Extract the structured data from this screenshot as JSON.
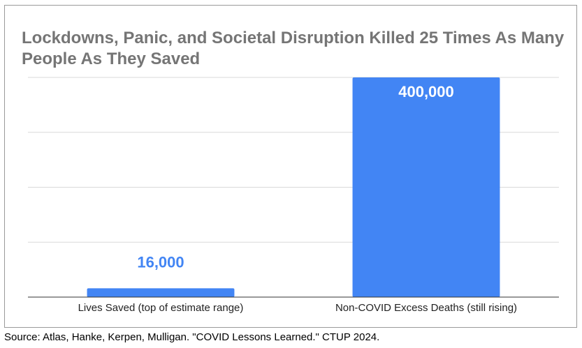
{
  "chart_data": {
    "type": "bar",
    "title": "Lockdowns, Panic, and Societal Disruption Killed 25 Times As Many People As They Saved",
    "categories": [
      "Lives Saved (top of estimate range)",
      "Non-COVID Excess Deaths (still rising)"
    ],
    "values": [
      16000,
      400000
    ],
    "data_labels": [
      "16,000",
      "400,000"
    ],
    "xlabel": "",
    "ylabel": "",
    "ylim": [
      0,
      400000
    ],
    "grid": true,
    "legend": "none",
    "bar_color": "#4285f4",
    "value_label_outside_color": "#4285f4",
    "value_label_inside_color": "#ffffff",
    "title_color": "#757575"
  },
  "source": "Source: Atlas, Hanke, Kerpen, Mulligan. \"COVID Lessons Learned.\" CTUP 2024."
}
